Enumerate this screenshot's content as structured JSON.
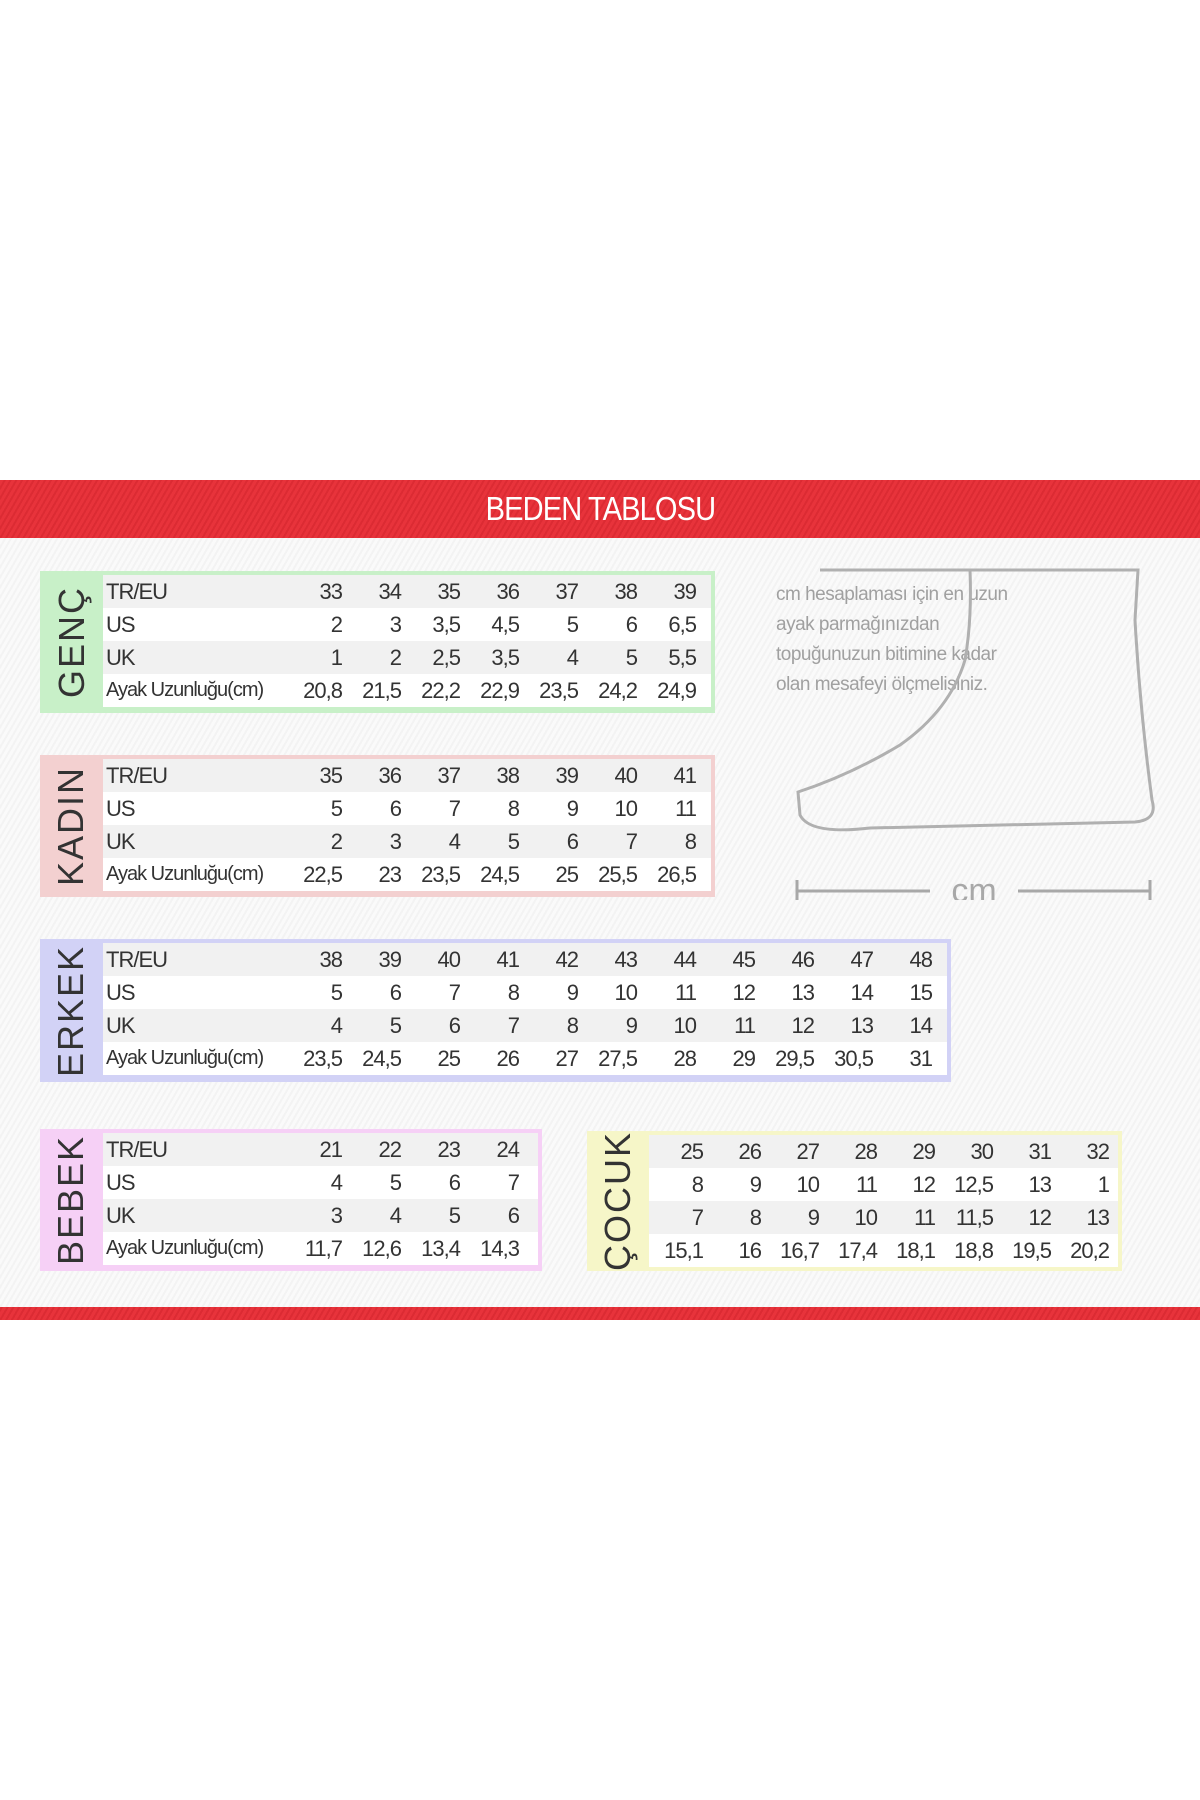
{
  "title": "BEDEN TABLOSU",
  "info_text": "cm hesaplaması için en uzun ayak parmağınızdan topuğunuzun bitimine kadar olan mesafeyi ölçmelisiniz.",
  "measure_label": "cm",
  "row_labels": [
    "TR/EU",
    "US",
    "UK",
    "Ayak Uzunluğu(cm)"
  ],
  "colors": {
    "band": "#e8333b",
    "genc": "#c8f0c8",
    "kadin": "#f3d0d0",
    "erkek": "#d2d2f6",
    "bebek": "#f6d0f6",
    "cocuk": "#f6f6c8"
  },
  "tables": {
    "genc": {
      "label": "GENÇ",
      "rows": [
        [
          "33",
          "34",
          "35",
          "36",
          "37",
          "38",
          "39"
        ],
        [
          "2",
          "3",
          "3,5",
          "4,5",
          "5",
          "6",
          "6,5"
        ],
        [
          "1",
          "2",
          "2,5",
          "3,5",
          "4",
          "5",
          "5,5"
        ],
        [
          "20,8",
          "21,5",
          "22,2",
          "22,9",
          "23,5",
          "24,2",
          "24,9"
        ]
      ]
    },
    "kadin": {
      "label": "KADIN",
      "rows": [
        [
          "35",
          "36",
          "37",
          "38",
          "39",
          "40",
          "41"
        ],
        [
          "5",
          "6",
          "7",
          "8",
          "9",
          "10",
          "11"
        ],
        [
          "2",
          "3",
          "4",
          "5",
          "6",
          "7",
          "8"
        ],
        [
          "22,5",
          "23",
          "23,5",
          "24,5",
          "25",
          "25,5",
          "26,5"
        ]
      ]
    },
    "erkek": {
      "label": "ERKEK",
      "rows": [
        [
          "38",
          "39",
          "40",
          "41",
          "42",
          "43",
          "44",
          "45",
          "46",
          "47",
          "48"
        ],
        [
          "5",
          "6",
          "7",
          "8",
          "9",
          "10",
          "11",
          "12",
          "13",
          "14",
          "15"
        ],
        [
          "4",
          "5",
          "6",
          "7",
          "8",
          "9",
          "10",
          "11",
          "12",
          "13",
          "14"
        ],
        [
          "23,5",
          "24,5",
          "25",
          "26",
          "27",
          "27,5",
          "28",
          "29",
          "29,5",
          "30,5",
          "31"
        ]
      ]
    },
    "bebek": {
      "label": "BEBEK",
      "rows": [
        [
          "21",
          "22",
          "23",
          "24"
        ],
        [
          "4",
          "5",
          "6",
          "7"
        ],
        [
          "3",
          "4",
          "5",
          "6"
        ],
        [
          "11,7",
          "12,6",
          "13,4",
          "14,3"
        ]
      ]
    },
    "cocuk": {
      "label": "ÇOCUK",
      "rows": [
        [
          "25",
          "26",
          "27",
          "28",
          "29",
          "30",
          "31",
          "32"
        ],
        [
          "8",
          "9",
          "10",
          "11",
          "12",
          "12,5",
          "13",
          "1"
        ],
        [
          "7",
          "8",
          "9",
          "10",
          "11",
          "11,5",
          "12",
          "13"
        ],
        [
          "15,1",
          "16",
          "16,7",
          "17,4",
          "18,1",
          "18,8",
          "19,5",
          "20,2"
        ]
      ]
    }
  }
}
